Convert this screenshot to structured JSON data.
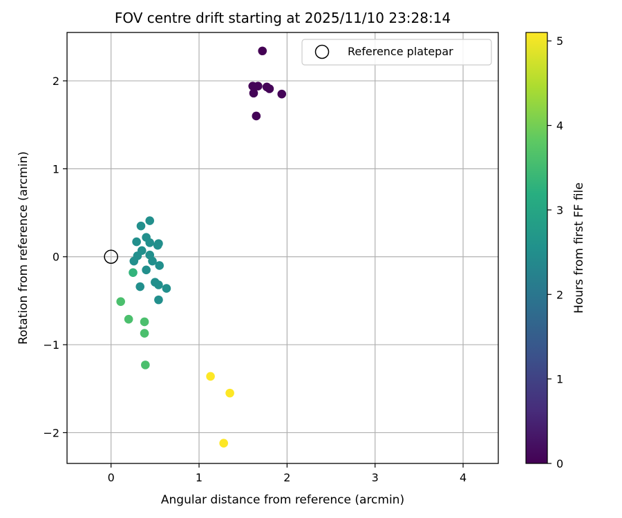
{
  "chart_data": {
    "type": "scatter",
    "title": "FOV centre drift starting at 2025/11/10 23:28:14",
    "xlabel": "Angular distance from reference (arcmin)",
    "ylabel": "Rotation from reference (arcmin)",
    "xlim": [
      -0.5,
      4.4
    ],
    "ylim": [
      -2.35,
      2.55
    ],
    "xticks": [
      0,
      1,
      2,
      3,
      4
    ],
    "yticks": [
      -2,
      -1,
      0,
      1,
      2
    ],
    "xtick_labels": [
      "0",
      "1",
      "2",
      "3",
      "4"
    ],
    "ytick_labels": [
      "−2",
      "−1",
      "0",
      "1",
      "2"
    ],
    "grid": true,
    "legend": {
      "label": "Reference platepar",
      "placement": "top-right"
    },
    "reference_point": {
      "x": 0,
      "y": 0
    },
    "colorbar": {
      "label": "Hours from first FF file",
      "min": 0,
      "max": 5.1,
      "ticks": [
        0,
        1,
        2,
        3,
        4,
        5
      ],
      "tick_labels": [
        "0",
        "1",
        "2",
        "3",
        "4",
        "5"
      ],
      "colormap": "viridis"
    },
    "points": [
      {
        "x": 1.72,
        "y": 2.34,
        "hours": 0.0
      },
      {
        "x": 1.61,
        "y": 1.94,
        "hours": 0.05
      },
      {
        "x": 1.67,
        "y": 1.94,
        "hours": 0.05
      },
      {
        "x": 1.77,
        "y": 1.93,
        "hours": 0.05
      },
      {
        "x": 1.8,
        "y": 1.91,
        "hours": 0.05
      },
      {
        "x": 1.62,
        "y": 1.86,
        "hours": 0.05
      },
      {
        "x": 1.94,
        "y": 1.85,
        "hours": 0.05
      },
      {
        "x": 1.65,
        "y": 1.6,
        "hours": 0.05
      },
      {
        "x": 0.44,
        "y": 0.41,
        "hours": 2.5
      },
      {
        "x": 0.34,
        "y": 0.35,
        "hours": 2.5
      },
      {
        "x": 0.4,
        "y": 0.22,
        "hours": 2.5
      },
      {
        "x": 0.29,
        "y": 0.17,
        "hours": 2.5
      },
      {
        "x": 0.44,
        "y": 0.16,
        "hours": 2.5
      },
      {
        "x": 0.54,
        "y": 0.15,
        "hours": 2.5
      },
      {
        "x": 0.53,
        "y": 0.13,
        "hours": 2.5
      },
      {
        "x": 0.35,
        "y": 0.07,
        "hours": 2.5
      },
      {
        "x": 0.44,
        "y": 0.02,
        "hours": 2.5
      },
      {
        "x": 0.3,
        "y": 0.01,
        "hours": 2.5
      },
      {
        "x": 0.26,
        "y": -0.05,
        "hours": 2.5
      },
      {
        "x": 0.47,
        "y": -0.05,
        "hours": 2.5
      },
      {
        "x": 0.55,
        "y": -0.1,
        "hours": 2.5
      },
      {
        "x": 0.4,
        "y": -0.15,
        "hours": 2.5
      },
      {
        "x": 0.25,
        "y": -0.18,
        "hours": 3.3
      },
      {
        "x": 0.5,
        "y": -0.29,
        "hours": 2.5
      },
      {
        "x": 0.54,
        "y": -0.32,
        "hours": 2.5
      },
      {
        "x": 0.33,
        "y": -0.34,
        "hours": 2.5
      },
      {
        "x": 0.63,
        "y": -0.36,
        "hours": 2.5
      },
      {
        "x": 0.54,
        "y": -0.49,
        "hours": 2.5
      },
      {
        "x": 0.11,
        "y": -0.51,
        "hours": 3.6
      },
      {
        "x": 0.2,
        "y": -0.71,
        "hours": 3.6
      },
      {
        "x": 0.38,
        "y": -0.74,
        "hours": 3.6
      },
      {
        "x": 0.38,
        "y": -0.87,
        "hours": 3.6
      },
      {
        "x": 0.39,
        "y": -1.23,
        "hours": 3.6
      },
      {
        "x": 1.13,
        "y": -1.36,
        "hours": 5.1
      },
      {
        "x": 1.35,
        "y": -1.55,
        "hours": 5.1
      },
      {
        "x": 1.28,
        "y": -2.12,
        "hours": 5.1
      }
    ]
  }
}
